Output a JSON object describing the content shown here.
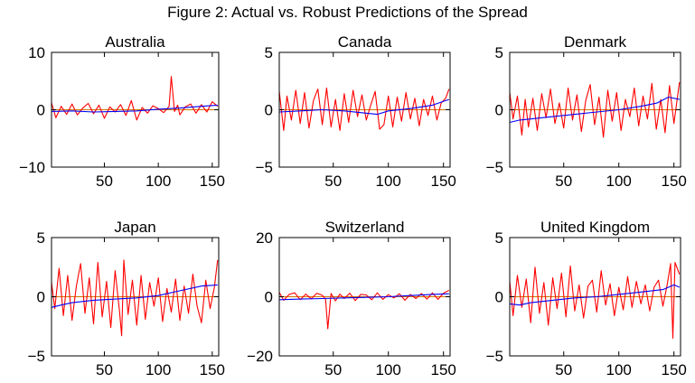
{
  "figure_title": "Figure 2: Actual vs. Robust Predictions of the Spread",
  "colors": {
    "actual": "#ff0000",
    "predicted": "#0000ff",
    "zero_line": "#000000",
    "axes": "#000000",
    "background": "#ffffff"
  },
  "chart_data": [
    {
      "type": "line",
      "title": "Australia",
      "xlim": [
        1,
        156
      ],
      "ylim": [
        -10,
        10
      ],
      "yticks": [
        -10,
        0,
        10
      ],
      "ytick_labels": [
        "−10",
        "0",
        "10"
      ],
      "xticks": [
        50,
        100,
        150
      ],
      "xtick_labels": [
        "50",
        "100",
        "150"
      ],
      "grid": false,
      "series": [
        {
          "role": "actual",
          "color": "#ff0000",
          "x": [
            1,
            5,
            10,
            15,
            20,
            25,
            30,
            35,
            40,
            45,
            50,
            55,
            60,
            65,
            70,
            75,
            80,
            85,
            90,
            95,
            100,
            105,
            110,
            112,
            115,
            118,
            120,
            125,
            130,
            135,
            140,
            145,
            150,
            155
          ],
          "y": [
            1.2,
            -1.4,
            0.6,
            -0.8,
            1.0,
            -0.9,
            0.3,
            1.1,
            -0.7,
            0.8,
            -1.5,
            0.5,
            -0.4,
            0.9,
            -1.0,
            1.6,
            -1.8,
            0.4,
            -0.6,
            0.7,
            0.2,
            -0.5,
            0.6,
            5.8,
            -0.3,
            0.8,
            -0.9,
            0.5,
            1.0,
            -0.6,
            0.9,
            -0.4,
            1.4,
            0.6
          ]
        },
        {
          "role": "predicted",
          "color": "#0000ff",
          "x": [
            1,
            20,
            40,
            60,
            80,
            100,
            120,
            140,
            155
          ],
          "y": [
            -0.3,
            -0.2,
            -0.4,
            -0.3,
            -0.2,
            0.1,
            0.3,
            0.6,
            0.8
          ]
        }
      ]
    },
    {
      "type": "line",
      "title": "Canada",
      "xlim": [
        1,
        156
      ],
      "ylim": [
        -5,
        5
      ],
      "yticks": [
        -5,
        0,
        5
      ],
      "ytick_labels": [
        "−5",
        "0",
        "5"
      ],
      "xticks": [
        50,
        100,
        150
      ],
      "xtick_labels": [
        "50",
        "100",
        "150"
      ],
      "grid": false,
      "series": [
        {
          "role": "actual",
          "color": "#ff0000",
          "x": [
            1,
            5,
            8,
            12,
            16,
            20,
            24,
            28,
            32,
            36,
            40,
            44,
            48,
            52,
            56,
            60,
            64,
            68,
            72,
            76,
            80,
            84,
            88,
            92,
            96,
            100,
            104,
            108,
            112,
            116,
            120,
            124,
            128,
            132,
            136,
            140,
            144,
            148,
            152,
            155
          ],
          "y": [
            1.6,
            -1.8,
            1.2,
            -0.9,
            1.7,
            -1.2,
            1.5,
            -1.6,
            0.8,
            1.8,
            -1.3,
            1.9,
            -1.5,
            0.9,
            -1.8,
            1.4,
            -1.1,
            1.7,
            -0.6,
            1.3,
            -0.9,
            0.4,
            1.6,
            -1.7,
            -1.3,
            1.2,
            -1.5,
            1.1,
            -1.0,
            1.5,
            -0.8,
            1.0,
            -1.4,
            0.9,
            -0.5,
            1.2,
            -0.9,
            0.6,
            1.0,
            1.8
          ]
        },
        {
          "role": "predicted",
          "color": "#0000ff",
          "x": [
            1,
            20,
            40,
            60,
            80,
            90,
            100,
            120,
            140,
            155
          ],
          "y": [
            -0.2,
            -0.1,
            0.0,
            -0.1,
            -0.3,
            -0.4,
            -0.1,
            0.1,
            0.4,
            0.9
          ]
        }
      ]
    },
    {
      "type": "line",
      "title": "Denmark",
      "xlim": [
        1,
        156
      ],
      "ylim": [
        -5,
        5
      ],
      "yticks": [
        -5,
        0,
        5
      ],
      "ytick_labels": [
        "−5",
        "0",
        "5"
      ],
      "xticks": [
        50,
        100,
        150
      ],
      "xtick_labels": [
        "50",
        "100",
        "150"
      ],
      "grid": false,
      "series": [
        {
          "role": "actual",
          "color": "#ff0000",
          "x": [
            1,
            4,
            8,
            12,
            15,
            18,
            22,
            26,
            30,
            34,
            38,
            42,
            46,
            50,
            54,
            58,
            62,
            66,
            70,
            74,
            78,
            82,
            86,
            90,
            94,
            98,
            102,
            106,
            110,
            114,
            118,
            122,
            126,
            130,
            134,
            138,
            142,
            146,
            150,
            155
          ],
          "y": [
            1.5,
            -0.8,
            1.2,
            -2.2,
            0.9,
            -1.5,
            1.0,
            -1.8,
            1.4,
            -0.7,
            1.8,
            -1.2,
            0.6,
            -1.6,
            1.9,
            -0.9,
            1.3,
            -1.9,
            0.8,
            2.2,
            -1.3,
            1.1,
            -2.4,
            1.7,
            -1.0,
            1.5,
            -1.8,
            0.9,
            -0.6,
            1.9,
            -1.4,
            1.2,
            -0.8,
            2.3,
            -1.7,
            0.9,
            -2.0,
            2.1,
            -1.2,
            2.4
          ]
        },
        {
          "role": "predicted",
          "color": "#0000ff",
          "x": [
            1,
            10,
            20,
            40,
            60,
            80,
            100,
            120,
            135,
            145,
            155
          ],
          "y": [
            -1.1,
            -0.9,
            -0.8,
            -0.6,
            -0.4,
            -0.2,
            0.0,
            0.3,
            0.6,
            1.1,
            0.9
          ]
        }
      ]
    },
    {
      "type": "line",
      "title": "Japan",
      "xlim": [
        1,
        156
      ],
      "ylim": [
        -5,
        5
      ],
      "yticks": [
        -5,
        0,
        5
      ],
      "ytick_labels": [
        "−5",
        "0",
        "5"
      ],
      "xticks": [
        50,
        100,
        150
      ],
      "xtick_labels": [
        "50",
        "100",
        "150"
      ],
      "grid": false,
      "series": [
        {
          "role": "actual",
          "color": "#ff0000",
          "x": [
            1,
            4,
            8,
            12,
            16,
            20,
            24,
            28,
            32,
            36,
            40,
            44,
            48,
            52,
            56,
            60,
            64,
            66,
            68,
            72,
            76,
            80,
            84,
            88,
            92,
            96,
            100,
            104,
            108,
            112,
            116,
            120,
            124,
            128,
            132,
            136,
            140,
            144,
            148,
            152,
            155
          ],
          "y": [
            1.2,
            -1.0,
            2.4,
            -1.6,
            1.8,
            -2.0,
            0.9,
            2.8,
            -1.4,
            1.6,
            -2.3,
            2.9,
            -1.7,
            1.3,
            -2.6,
            2.2,
            -1.2,
            -3.3,
            3.1,
            -1.5,
            1.4,
            -2.4,
            1.8,
            -1.9,
            1.2,
            -0.8,
            1.6,
            -2.1,
            0.7,
            -1.3,
            1.5,
            -2.0,
            0.9,
            -1.4,
            1.9,
            -0.8,
            -2.2,
            1.4,
            -1.0,
            0.8,
            3.1
          ]
        },
        {
          "role": "predicted",
          "color": "#0000ff",
          "x": [
            1,
            10,
            20,
            40,
            60,
            80,
            100,
            120,
            140,
            155
          ],
          "y": [
            -0.9,
            -0.7,
            -0.5,
            -0.3,
            -0.2,
            -0.1,
            0.1,
            0.5,
            0.9,
            1.0
          ]
        }
      ]
    },
    {
      "type": "line",
      "title": "Switzerland",
      "xlim": [
        1,
        156
      ],
      "ylim": [
        -20,
        20
      ],
      "yticks": [
        -20,
        0,
        20
      ],
      "ytick_labels": [
        "−20",
        "0",
        "20"
      ],
      "xticks": [
        50,
        100,
        150
      ],
      "xtick_labels": [
        "50",
        "100",
        "150"
      ],
      "grid": false,
      "series": [
        {
          "role": "actual",
          "color": "#ff0000",
          "x": [
            1,
            5,
            10,
            15,
            20,
            25,
            30,
            35,
            40,
            43,
            45,
            48,
            52,
            56,
            60,
            65,
            70,
            75,
            80,
            85,
            90,
            95,
            100,
            105,
            110,
            115,
            120,
            125,
            130,
            135,
            140,
            145,
            150,
            155
          ],
          "y": [
            1.5,
            -1.2,
            0.8,
            1.3,
            -1.0,
            0.9,
            -0.7,
            1.2,
            0.5,
            -0.8,
            -10.8,
            1.1,
            -1.4,
            0.9,
            -0.6,
            1.2,
            -1.3,
            0.8,
            0.6,
            -1.0,
            1.3,
            -0.9,
            0.7,
            -0.4,
            1.0,
            -1.2,
            0.8,
            -0.6,
            1.1,
            -0.8,
            1.3,
            -0.9,
            1.2,
            2.2
          ]
        },
        {
          "role": "predicted",
          "color": "#0000ff",
          "x": [
            1,
            20,
            40,
            60,
            80,
            100,
            120,
            140,
            155
          ],
          "y": [
            -1.0,
            -0.8,
            -0.6,
            -0.4,
            -0.2,
            0.0,
            0.4,
            0.8,
            1.0
          ]
        }
      ]
    },
    {
      "type": "line",
      "title": "United Kingdom",
      "xlim": [
        1,
        156
      ],
      "ylim": [
        -5,
        5
      ],
      "yticks": [
        -5,
        0,
        5
      ],
      "ytick_labels": [
        "−5",
        "0",
        "5"
      ],
      "xticks": [
        50,
        100,
        150
      ],
      "xtick_labels": [
        "50",
        "100",
        "150"
      ],
      "grid": false,
      "series": [
        {
          "role": "actual",
          "color": "#ff0000",
          "x": [
            1,
            4,
            8,
            12,
            16,
            20,
            24,
            28,
            32,
            36,
            40,
            44,
            48,
            52,
            56,
            60,
            64,
            68,
            72,
            76,
            80,
            84,
            88,
            92,
            96,
            100,
            104,
            108,
            112,
            116,
            120,
            124,
            128,
            132,
            136,
            140,
            144,
            147,
            149,
            151,
            155
          ],
          "y": [
            1.3,
            -1.6,
            1.8,
            -0.9,
            1.5,
            -2.2,
            2.5,
            -1.4,
            1.2,
            -2.4,
            1.6,
            -1.0,
            2.0,
            -1.7,
            2.6,
            -1.2,
            1.0,
            -1.8,
            0.9,
            1.4,
            -1.3,
            2.2,
            -0.7,
            1.1,
            -1.6,
            0.8,
            -1.1,
            1.7,
            -0.9,
            1.3,
            -0.6,
            1.0,
            -1.2,
            0.8,
            1.4,
            -0.8,
            1.1,
            2.8,
            -3.5,
            2.9,
            1.9
          ]
        },
        {
          "role": "predicted",
          "color": "#0000ff",
          "x": [
            1,
            10,
            20,
            40,
            60,
            80,
            100,
            120,
            140,
            150,
            155
          ],
          "y": [
            -0.6,
            -0.7,
            -0.5,
            -0.3,
            -0.1,
            0.0,
            0.2,
            0.4,
            0.6,
            1.0,
            0.8
          ]
        }
      ]
    }
  ]
}
